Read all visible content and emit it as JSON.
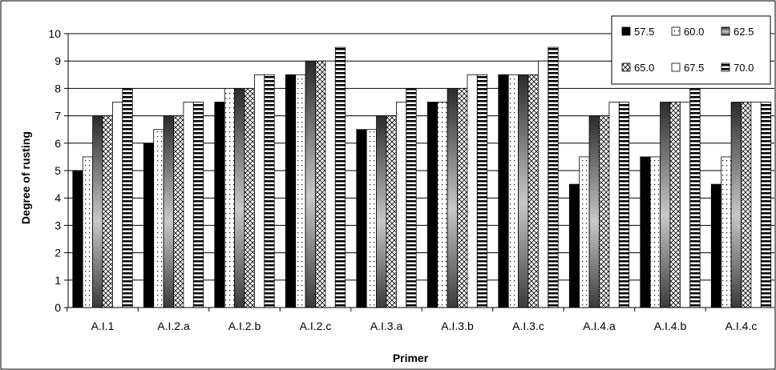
{
  "chart_data": {
    "type": "bar",
    "title": "",
    "xlabel": "Primer",
    "ylabel": "Degree of rusting",
    "ylim": [
      0,
      10
    ],
    "yticks": [
      "0",
      "1",
      "2",
      "3",
      "4",
      "5",
      "6",
      "7",
      "8",
      "9",
      "10"
    ],
    "grid": true,
    "legend_position": "top-right",
    "categories": [
      "A.I.1",
      "A.I.2.a",
      "A.I.2.b",
      "A.I.2.c",
      "A.I.3.a",
      "A.I.3.b",
      "A.I.3.c",
      "A.I.4.a",
      "A.I.4.b",
      "A.I.4.c"
    ],
    "series": [
      {
        "name": "57.5",
        "pattern": "solid-black",
        "values": [
          5,
          6,
          7.5,
          8.5,
          6.5,
          7.5,
          8.5,
          4.5,
          5.5,
          4.5
        ]
      },
      {
        "name": "60.0",
        "pattern": "dotted-white",
        "values": [
          5.5,
          6.5,
          8,
          8.5,
          6.5,
          7.5,
          8.5,
          5.5,
          5.5,
          5.5
        ]
      },
      {
        "name": "62.5",
        "pattern": "gray-gradient",
        "values": [
          7,
          7,
          8,
          9,
          7,
          8,
          8.5,
          7,
          7.5,
          7.5
        ]
      },
      {
        "name": "65.0",
        "pattern": "crosshatch",
        "values": [
          7,
          7,
          8,
          9,
          7,
          8,
          8.5,
          7,
          7.5,
          7.5
        ]
      },
      {
        "name": "67.5",
        "pattern": "plain-white",
        "values": [
          7.5,
          7.5,
          8.5,
          9,
          7.5,
          8.5,
          9,
          7.5,
          7.5,
          7.5
        ]
      },
      {
        "name": "70.0",
        "pattern": "horizontal-stripes",
        "values": [
          8,
          7.5,
          8.5,
          9.5,
          8,
          8.5,
          9.5,
          7.5,
          8,
          7.5
        ]
      }
    ]
  }
}
